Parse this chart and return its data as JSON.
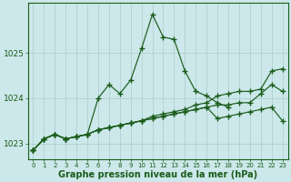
{
  "title": "Graphe pression niveau de la mer (hPa)",
  "background_color": "#cce8ea",
  "grid_color": "#aacccc",
  "line_color": "#1a5c1a",
  "xlim": [
    -0.5,
    23.5
  ],
  "ylim": [
    1022.65,
    1026.1
  ],
  "yticks": [
    1023,
    1024,
    1025
  ],
  "xticks": [
    0,
    1,
    2,
    3,
    4,
    5,
    6,
    7,
    8,
    9,
    10,
    11,
    12,
    13,
    14,
    15,
    16,
    17,
    18,
    19,
    20,
    21,
    22,
    23
  ],
  "series": {
    "peaked": [
      1022.85,
      1023.1,
      1023.2,
      1023.1,
      1023.15,
      1023.2,
      1024.0,
      1024.3,
      1024.1,
      1024.4,
      1025.1,
      1025.85,
      1025.35,
      1025.3,
      1024.6,
      1024.15,
      1024.05,
      1023.9,
      1023.8,
      null,
      null,
      null,
      null,
      null
    ],
    "upper_diag": [
      1022.85,
      1023.1,
      1023.2,
      1023.1,
      1023.15,
      1023.2,
      1023.3,
      1023.35,
      1023.4,
      1023.45,
      1023.5,
      1023.6,
      1023.65,
      1023.7,
      1023.75,
      1023.85,
      1023.9,
      1024.05,
      1024.1,
      1024.15,
      1024.15,
      1024.2,
      1024.6,
      1024.65
    ],
    "mid_diag": [
      1022.85,
      1023.1,
      1023.2,
      1023.1,
      1023.15,
      1023.2,
      1023.3,
      1023.35,
      1023.4,
      1023.45,
      1023.5,
      1023.55,
      1023.6,
      1023.65,
      1023.7,
      1023.75,
      1023.8,
      1023.85,
      1023.85,
      1023.9,
      1023.9,
      1024.1,
      1024.3,
      1024.15
    ],
    "flat": [
      1022.85,
      1023.1,
      1023.2,
      1023.1,
      1023.15,
      1023.2,
      1023.3,
      1023.35,
      1023.4,
      1023.45,
      1023.5,
      1023.55,
      1023.6,
      1023.65,
      1023.7,
      1023.75,
      1023.8,
      1023.55,
      1023.6,
      1023.65,
      1023.7,
      1023.75,
      1023.8,
      1023.5
    ]
  },
  "title_fontsize": 7
}
